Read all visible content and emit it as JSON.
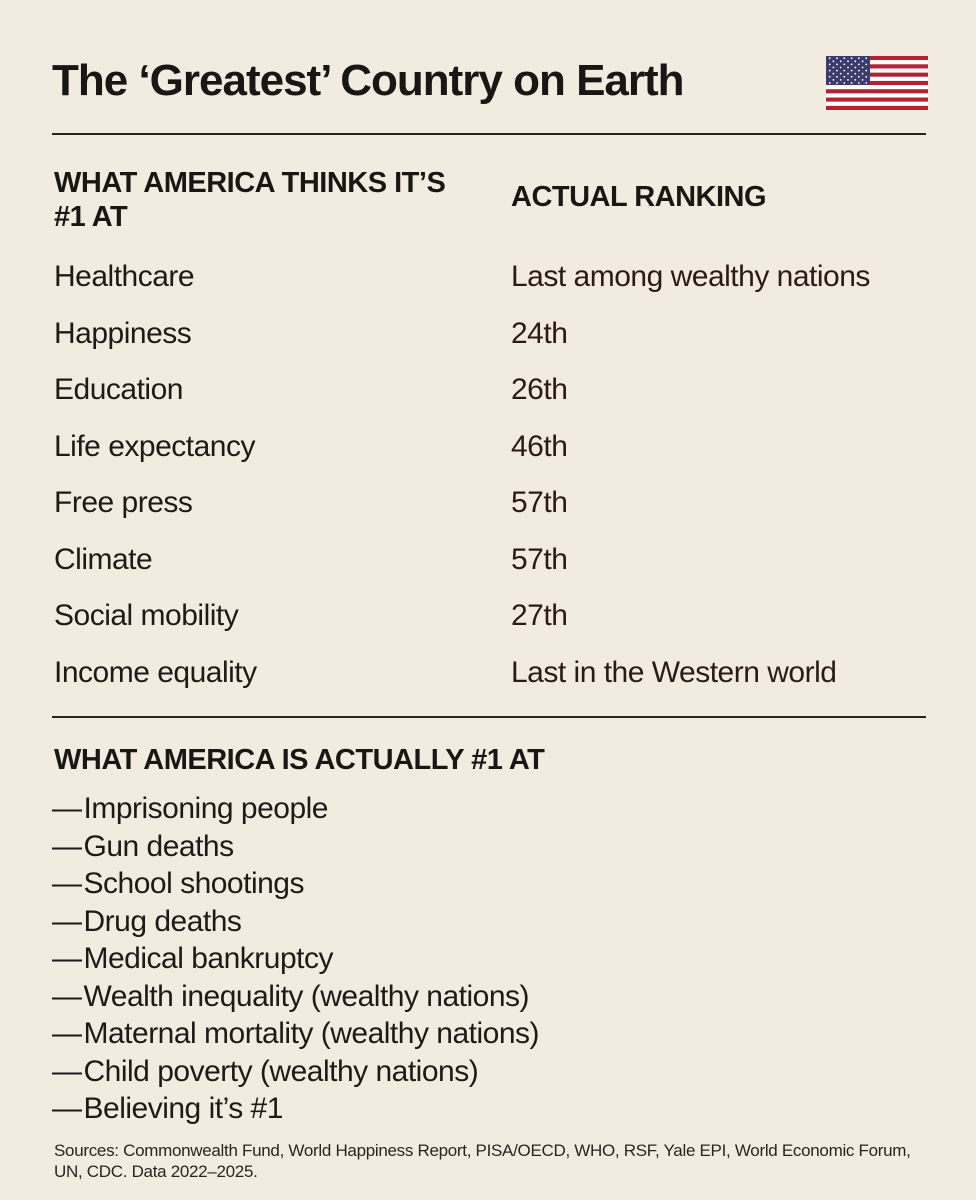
{
  "title": "The ‘Greatest’ Country on Earth",
  "flag_icon": "us-flag-icon",
  "column_headers": {
    "left": "WHAT AMERICA THINKS IT’S #1 AT",
    "right": "ACTUAL RANKING"
  },
  "rankings": [
    {
      "category": "Healthcare",
      "rank": "Last among wealthy nations"
    },
    {
      "category": "Happiness",
      "rank": "24th"
    },
    {
      "category": "Education",
      "rank": "26th"
    },
    {
      "category": "Life expectancy",
      "rank": "46th"
    },
    {
      "category": "Free press",
      "rank": "57th"
    },
    {
      "category": "Climate",
      "rank": "57th"
    },
    {
      "category": "Social mobility",
      "rank": "27th"
    },
    {
      "category": "Income equality",
      "rank": "Last in the Western world"
    }
  ],
  "actual_heading": "WHAT AMERICA IS ACTUALLY #1 AT",
  "dash": "—",
  "actual_items": [
    "Imprisoning people",
    "Gun deaths",
    "School shootings",
    "Drug deaths",
    "Medical bankruptcy",
    "Wealth inequality (wealthy nations)",
    "Maternal mortality (wealthy nations)",
    "Child poverty (wealthy nations)",
    "Believing it’s #1"
  ],
  "sources": "Sources: Commonwealth Fund, World Happiness Report, PISA/OECD, WHO, RSF, Yale EPI, World Economic Forum, UN, CDC. Data 2022–2025.",
  "colors": {
    "background": "#f2ece0",
    "text": "#1c1714",
    "flag_red": "#b22234",
    "flag_blue": "#3c3b6e",
    "flag_white": "#ffffff"
  }
}
